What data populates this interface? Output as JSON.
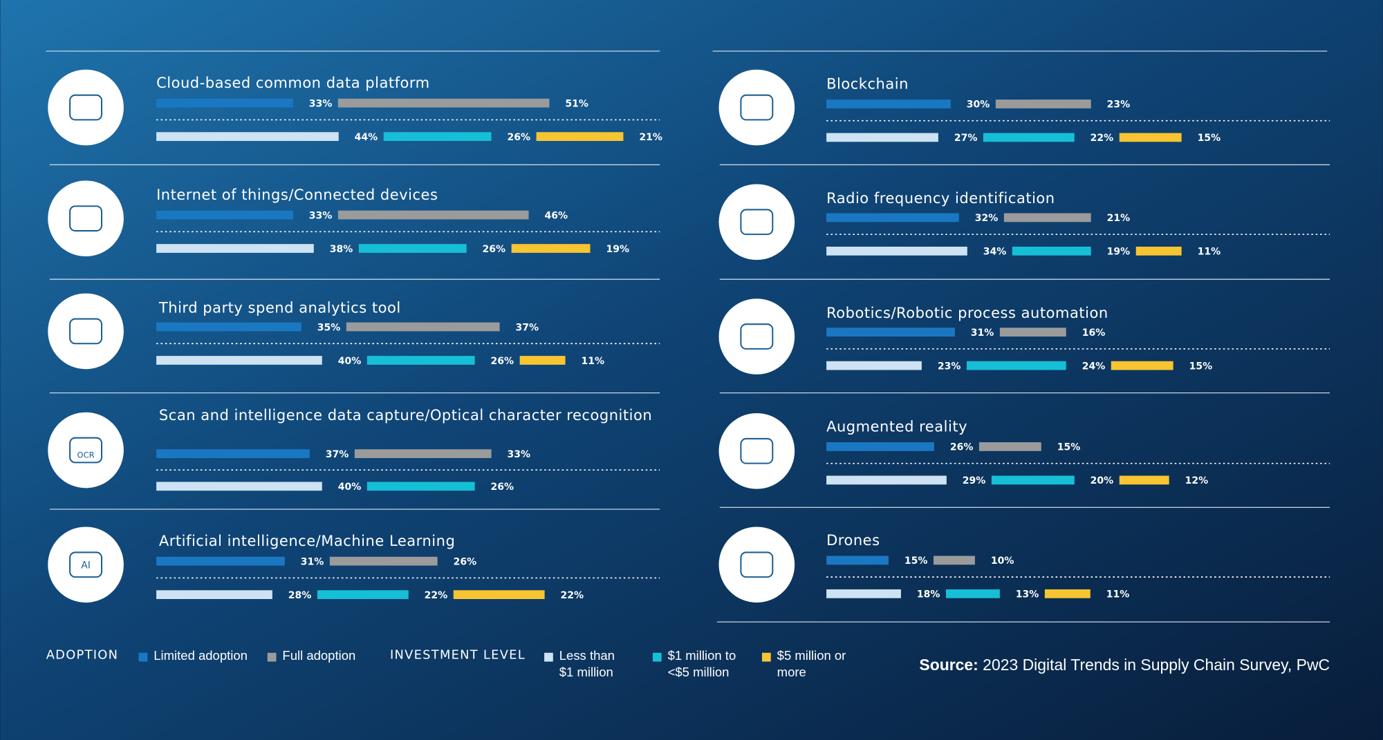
{
  "chart_data": {
    "type": "bar",
    "categories": [
      "Cloud-based common data platform",
      "Internet of things/Connected devices",
      "Third party spend analytics tool",
      "Scan and intelligence data capture/Optical character recognition",
      "Artificial intelligence/Machine Learning",
      "Blockchain",
      "Radio frequency identification",
      "Robotics/Robotic process automation",
      "Augmented reality",
      "Drones"
    ],
    "series": [
      {
        "name": "Limited adoption",
        "group": "adoption",
        "color": "#1a78c2",
        "values": [
          33,
          33,
          35,
          37,
          31,
          30,
          32,
          31,
          26,
          15
        ],
        "value_labels": [
          "33%",
          "33%",
          "35%",
          "37%",
          "31%",
          "30%",
          "32%",
          "31%",
          "26%",
          "15%"
        ]
      },
      {
        "name": "Full adoption",
        "group": "adoption",
        "color": "#9b9b9b",
        "values": [
          51,
          46,
          37,
          33,
          26,
          23,
          21,
          16,
          15,
          10
        ],
        "value_labels": [
          "51%",
          "46%",
          "37%",
          "33%",
          "26%",
          "23%",
          "21%",
          "16%",
          "15%",
          "10%"
        ]
      },
      {
        "name": "Less than $1 million",
        "group": "investment",
        "color": "#cde2f2",
        "values": [
          44,
          38,
          40,
          40,
          28,
          27,
          34,
          23,
          29,
          18
        ],
        "value_labels": [
          "44%",
          "38%",
          "40%",
          "40%",
          "28%",
          "27%",
          "34%",
          "23%",
          "29%",
          "18%"
        ]
      },
      {
        "name": "$1 million to <$5 million",
        "group": "investment",
        "color": "#16bfd6",
        "values": [
          26,
          26,
          26,
          26,
          22,
          22,
          19,
          24,
          20,
          13
        ],
        "value_labels": [
          "26%",
          "26%",
          "26%",
          "26%",
          "22%",
          "22%",
          "19%",
          "24%",
          "20%",
          "13%"
        ]
      },
      {
        "name": "$5 million or more",
        "group": "investment",
        "color": "#f7c531",
        "values": [
          21,
          19,
          11,
          null,
          22,
          15,
          11,
          15,
          12,
          11
        ],
        "value_labels": [
          "21%",
          "19%",
          "11%",
          null,
          "22%",
          "15%",
          "11%",
          "15%",
          "12%",
          "11%"
        ]
      }
    ],
    "adoption_legend_title": "ADOPTION",
    "investment_legend_title": "INVESTMENT LEVEL",
    "ocr_icon_label": "OCR",
    "ai_icon_label": "AI",
    "source_label": "Source:",
    "source": "2023 Digital Trends in Supply Chain Survey, PwC"
  }
}
